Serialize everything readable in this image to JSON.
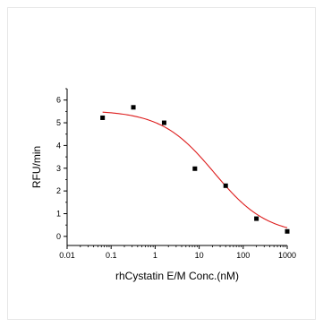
{
  "chart_data": {
    "type": "scatter",
    "title": "",
    "xlabel": "rhCystatin E/M Conc.(nM)",
    "ylabel": "RFU/min",
    "xscale": "log",
    "xlim": [
      0.01,
      1000
    ],
    "ylim": [
      -0.4,
      6.5
    ],
    "xticks": [
      0.01,
      0.1,
      1,
      10,
      100,
      1000
    ],
    "xtick_labels": [
      "0.01",
      "0.1",
      "1",
      "10",
      "100",
      "1000"
    ],
    "yticks": [
      0,
      1,
      2,
      3,
      4,
      5,
      6
    ],
    "ytick_labels": [
      "0",
      "1",
      "2",
      "3",
      "4",
      "5",
      "6"
    ],
    "grid": false,
    "legend": "none",
    "series": [
      {
        "kind": "points",
        "marker": "square",
        "color": "#000000",
        "x": [
          0.064,
          0.32,
          1.6,
          8,
          40,
          200,
          1000
        ],
        "y": [
          5.22,
          5.68,
          5.0,
          2.98,
          2.23,
          0.78,
          0.22
        ]
      },
      {
        "kind": "fit-curve",
        "color": "#dd1c1c",
        "model": "four-parameter-logistic",
        "top": 5.55,
        "bottom": 0.05,
        "ec50": 22,
        "hill": 0.72,
        "x_range": [
          0.064,
          1000
        ]
      }
    ]
  }
}
